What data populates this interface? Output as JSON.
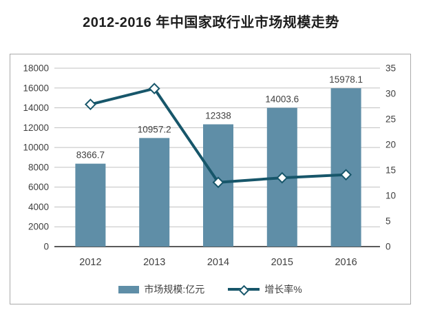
{
  "title": "2012-2016 年中国家政行业市场规模走势",
  "chart_data": {
    "type": "bar",
    "title": "2012-2016 年中国家政行业市场规模走势",
    "categories": [
      "2012",
      "2013",
      "2014",
      "2015",
      "2016"
    ],
    "series": [
      {
        "name": "市场规模:亿元",
        "type": "bar",
        "axis": "left",
        "values": [
          8366.7,
          10957.2,
          12338,
          14003.6,
          15978.1
        ],
        "labels": [
          "8366.7",
          "10957.2",
          "12338",
          "14003.6",
          "15978.1"
        ],
        "color": "#5f8ea7"
      },
      {
        "name": "增长率%",
        "type": "line",
        "axis": "right",
        "marker": "diamond",
        "values": [
          27.9,
          31.0,
          12.6,
          13.5,
          14.1
        ],
        "color": "#17566a"
      }
    ],
    "left_axis": {
      "min": 0,
      "max": 18000,
      "step": 2000,
      "ticks": [
        0,
        2000,
        4000,
        6000,
        8000,
        10000,
        12000,
        14000,
        16000,
        18000
      ]
    },
    "right_axis": {
      "min": 0,
      "max": 35,
      "step": 5,
      "ticks": [
        0,
        5,
        10,
        15,
        20,
        25,
        30,
        35
      ]
    },
    "grid": true,
    "legend_position": "bottom",
    "colors": {
      "bar": "#5f8ea7",
      "line": "#17566a",
      "grid": "#c0c0c0",
      "axis": "#595959",
      "text": "#3f3f3f",
      "title": "#1d1d1d"
    }
  }
}
